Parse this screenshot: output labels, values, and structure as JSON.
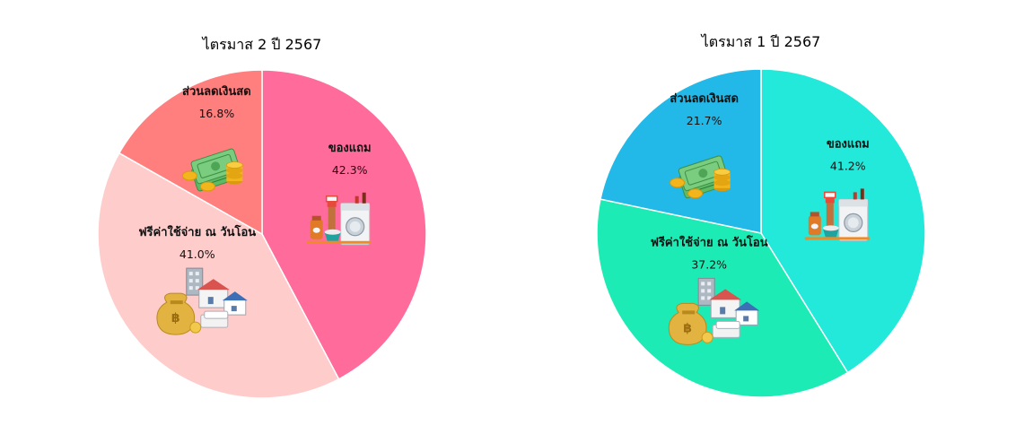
{
  "chart_data": [
    {
      "type": "pie",
      "title": "ไตรมาส 2 ปี 2567",
      "slices": [
        {
          "label": "ของแถม",
          "value": 42.3,
          "value_label": "42.3%",
          "color": "#FF6B9A",
          "icon": "appliances-icon"
        },
        {
          "label": "ฟรีค่าใช้จ่าย ณ วันโอน",
          "value": 41.0,
          "value_label": "41.0%",
          "color": "#FFCCCC",
          "icon": "property-moneybag-icon"
        },
        {
          "label": "ส่วนลดเงินสด",
          "value": 16.8,
          "value_label": "16.8%",
          "color": "#FF7F7F",
          "icon": "cash-coins-icon"
        }
      ]
    },
    {
      "type": "pie",
      "title": "ไตรมาส 1 ปี 2567",
      "slices": [
        {
          "label": "ของแถม",
          "value": 41.2,
          "value_label": "41.2%",
          "color": "#22E9DA",
          "icon": "appliances-icon"
        },
        {
          "label": "ฟรีค่าใช้จ่าย ณ วันโอน",
          "value": 37.2,
          "value_label": "37.2%",
          "color": "#1DEBB5",
          "icon": "property-moneybag-icon"
        },
        {
          "label": "ส่วนลดเงินสด",
          "value": 21.7,
          "value_label": "21.7%",
          "color": "#22B8E8",
          "icon": "cash-coins-icon"
        }
      ]
    }
  ]
}
